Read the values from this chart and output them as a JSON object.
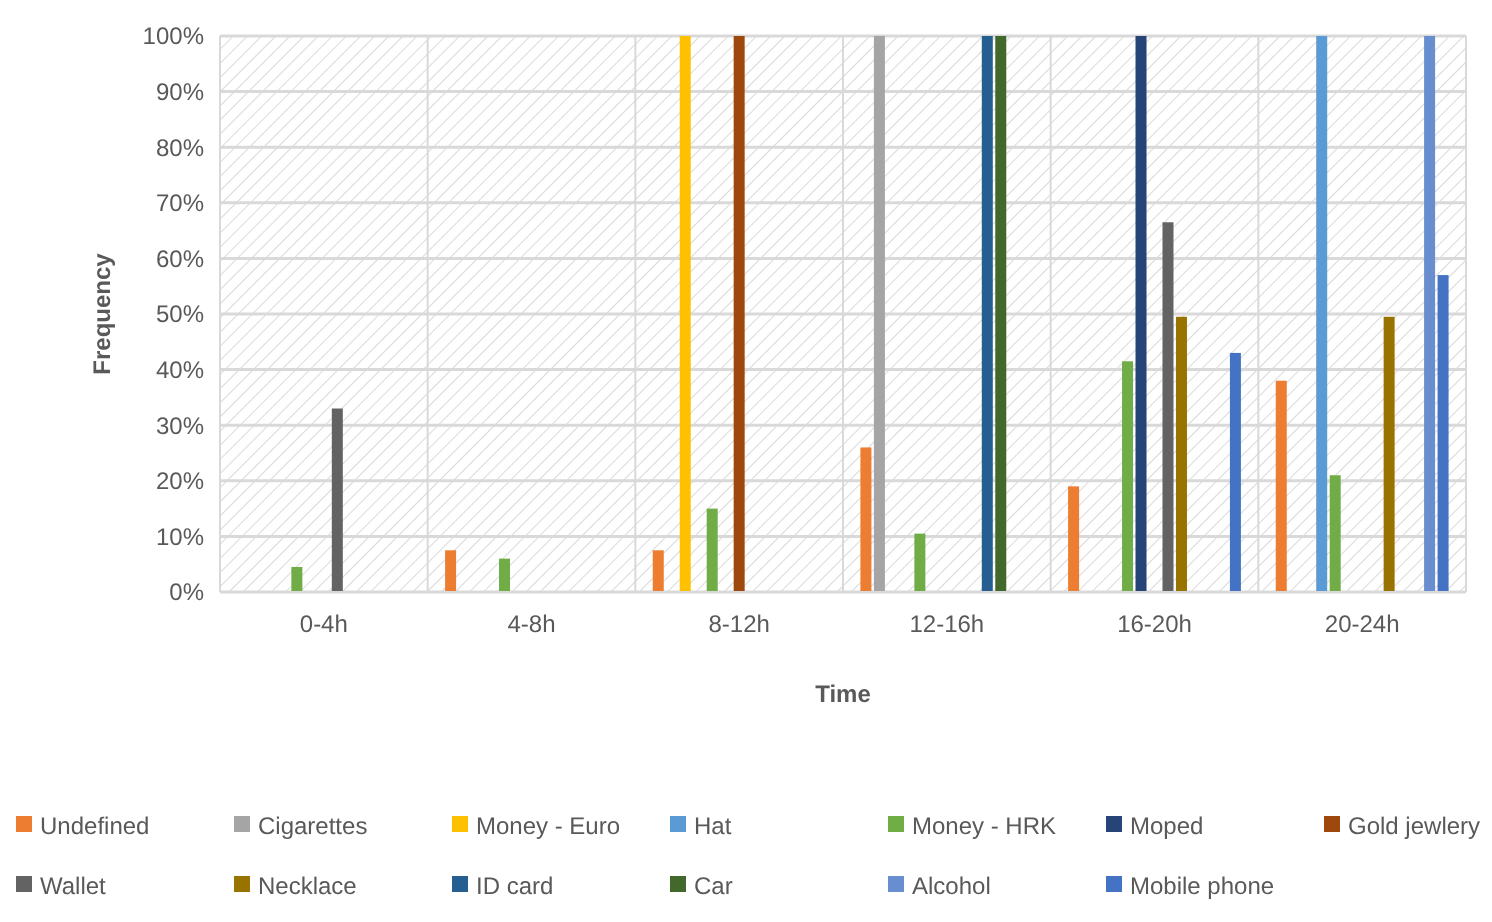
{
  "chart_data": {
    "type": "bar",
    "xlabel": "Time",
    "ylabel": "Frequency",
    "categories": [
      "0-4h",
      "4-8h",
      "8-12h",
      "12-16h",
      "16-20h",
      "20-24h"
    ],
    "ylim": [
      0,
      100
    ],
    "yticks": [
      {
        "value": 0,
        "label": "0%"
      },
      {
        "value": 10,
        "label": "10%"
      },
      {
        "value": 20,
        "label": "20%"
      },
      {
        "value": 30,
        "label": "30%"
      },
      {
        "value": 40,
        "label": "40%"
      },
      {
        "value": 50,
        "label": "50%"
      },
      {
        "value": 60,
        "label": "60%"
      },
      {
        "value": 70,
        "label": "70%"
      },
      {
        "value": 80,
        "label": "80%"
      },
      {
        "value": 90,
        "label": "90%"
      },
      {
        "value": 100,
        "label": "100%"
      }
    ],
    "grid": true,
    "legend": "bottom",
    "series": [
      {
        "name": "Undefined",
        "color": "#ed7d31",
        "values": [
          null,
          7.5,
          7.5,
          26,
          19,
          38
        ]
      },
      {
        "name": "Cigarettes",
        "color": "#a5a5a5",
        "values": [
          null,
          null,
          null,
          100,
          null,
          null
        ]
      },
      {
        "name": "Money - Euro",
        "color": "#ffc000",
        "values": [
          null,
          null,
          100,
          null,
          null,
          null
        ]
      },
      {
        "name": "Hat",
        "color": "#5b9bd5",
        "values": [
          null,
          null,
          null,
          null,
          null,
          100
        ]
      },
      {
        "name": "Money - HRK",
        "color": "#70ad47",
        "values": [
          4.5,
          6,
          15,
          10.5,
          41.5,
          21
        ]
      },
      {
        "name": "Moped",
        "color": "#264478",
        "values": [
          null,
          null,
          null,
          null,
          100,
          null
        ]
      },
      {
        "name": "Gold jewlery",
        "color": "#9e480e",
        "values": [
          null,
          null,
          100,
          null,
          null,
          null
        ]
      },
      {
        "name": "Wallet",
        "color": "#636363",
        "values": [
          33,
          null,
          null,
          null,
          66.5,
          null
        ]
      },
      {
        "name": "Necklace",
        "color": "#997300",
        "values": [
          null,
          null,
          null,
          null,
          49.5,
          49.5
        ]
      },
      {
        "name": "ID card",
        "color": "#255e91",
        "values": [
          null,
          null,
          null,
          100,
          null,
          null
        ]
      },
      {
        "name": "Car",
        "color": "#43682b",
        "values": [
          null,
          null,
          null,
          100,
          null,
          null
        ]
      },
      {
        "name": "Alcohol",
        "color": "#698ed0",
        "values": [
          null,
          null,
          null,
          null,
          null,
          100
        ]
      },
      {
        "name": "Mobile phone",
        "color": "#4472c4",
        "values": [
          null,
          null,
          null,
          null,
          43,
          57
        ]
      }
    ]
  }
}
